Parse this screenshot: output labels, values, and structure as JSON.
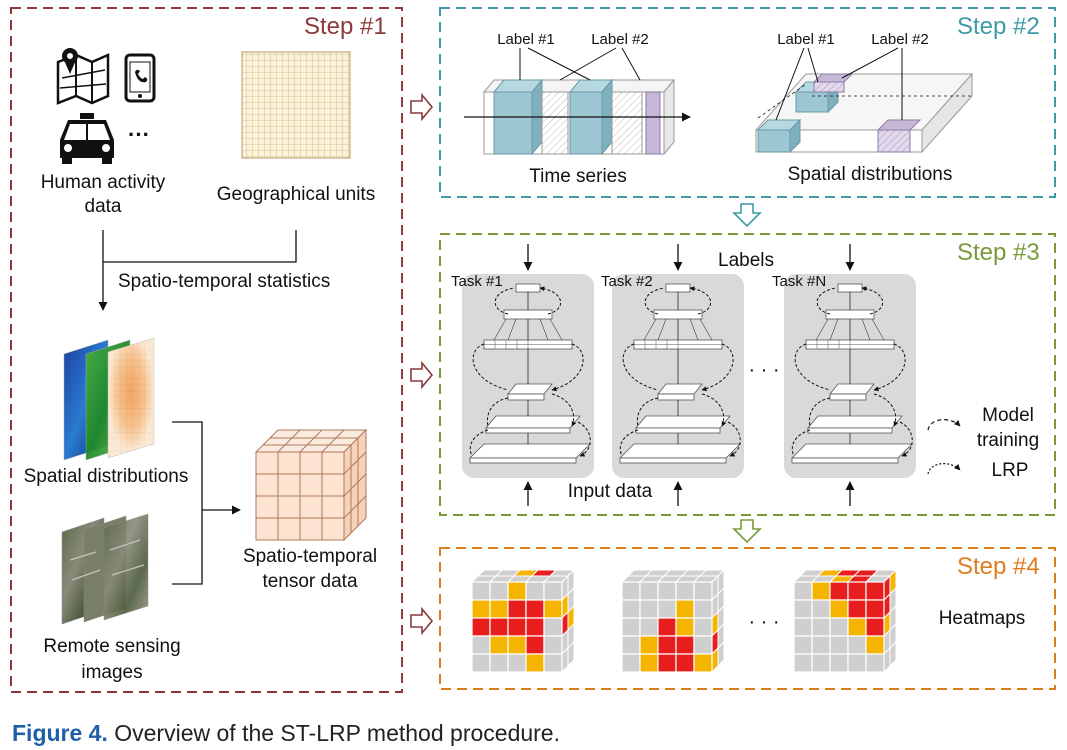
{
  "colors": {
    "step1": "#8b3a3a",
    "step2": "#3e9aa6",
    "step3": "#7a9a3a",
    "step4": "#e07b1e",
    "caption_blue": "#1f5fa8",
    "teal_box": "#9cc7d2",
    "lilac_box": "#c8b8d8",
    "tensor_fill": "#fde3d1",
    "panel_gray": "#d9d9d9",
    "heat_red": "#e81e1e",
    "heat_yellow": "#f4b400",
    "heat_gray": "#cfcfcf"
  },
  "step1": {
    "title": "Step #1",
    "human_activity": [
      "Human activity",
      "data"
    ],
    "dots": "···",
    "geo_units": "Geographical units",
    "stats": "Spatio-temporal statistics",
    "spatial": "Spatial distributions",
    "remote": [
      "Remote sensing",
      "images"
    ],
    "tensor": [
      "Spatio-temporal",
      "tensor data"
    ]
  },
  "step2": {
    "title": "Step #2",
    "label1": "Label #1",
    "label2": "Label #2",
    "time_series": "Time series",
    "spatial_distributions": "Spatial distributions"
  },
  "step3": {
    "title": "Step #3",
    "labels": "Labels",
    "task1": "Task #1",
    "task2": "Task #2",
    "taskN": "Task #N",
    "dots": "· · ·",
    "input_data": "Input data",
    "model_training": [
      "Model",
      "training"
    ],
    "lrp": "LRP"
  },
  "step4": {
    "title": "Step #4",
    "heatmaps": "Heatmaps",
    "dots": "· · ·"
  },
  "caption": {
    "prefix": "Figure 4.",
    "text": " Overview of the ST-LRP method procedure."
  }
}
